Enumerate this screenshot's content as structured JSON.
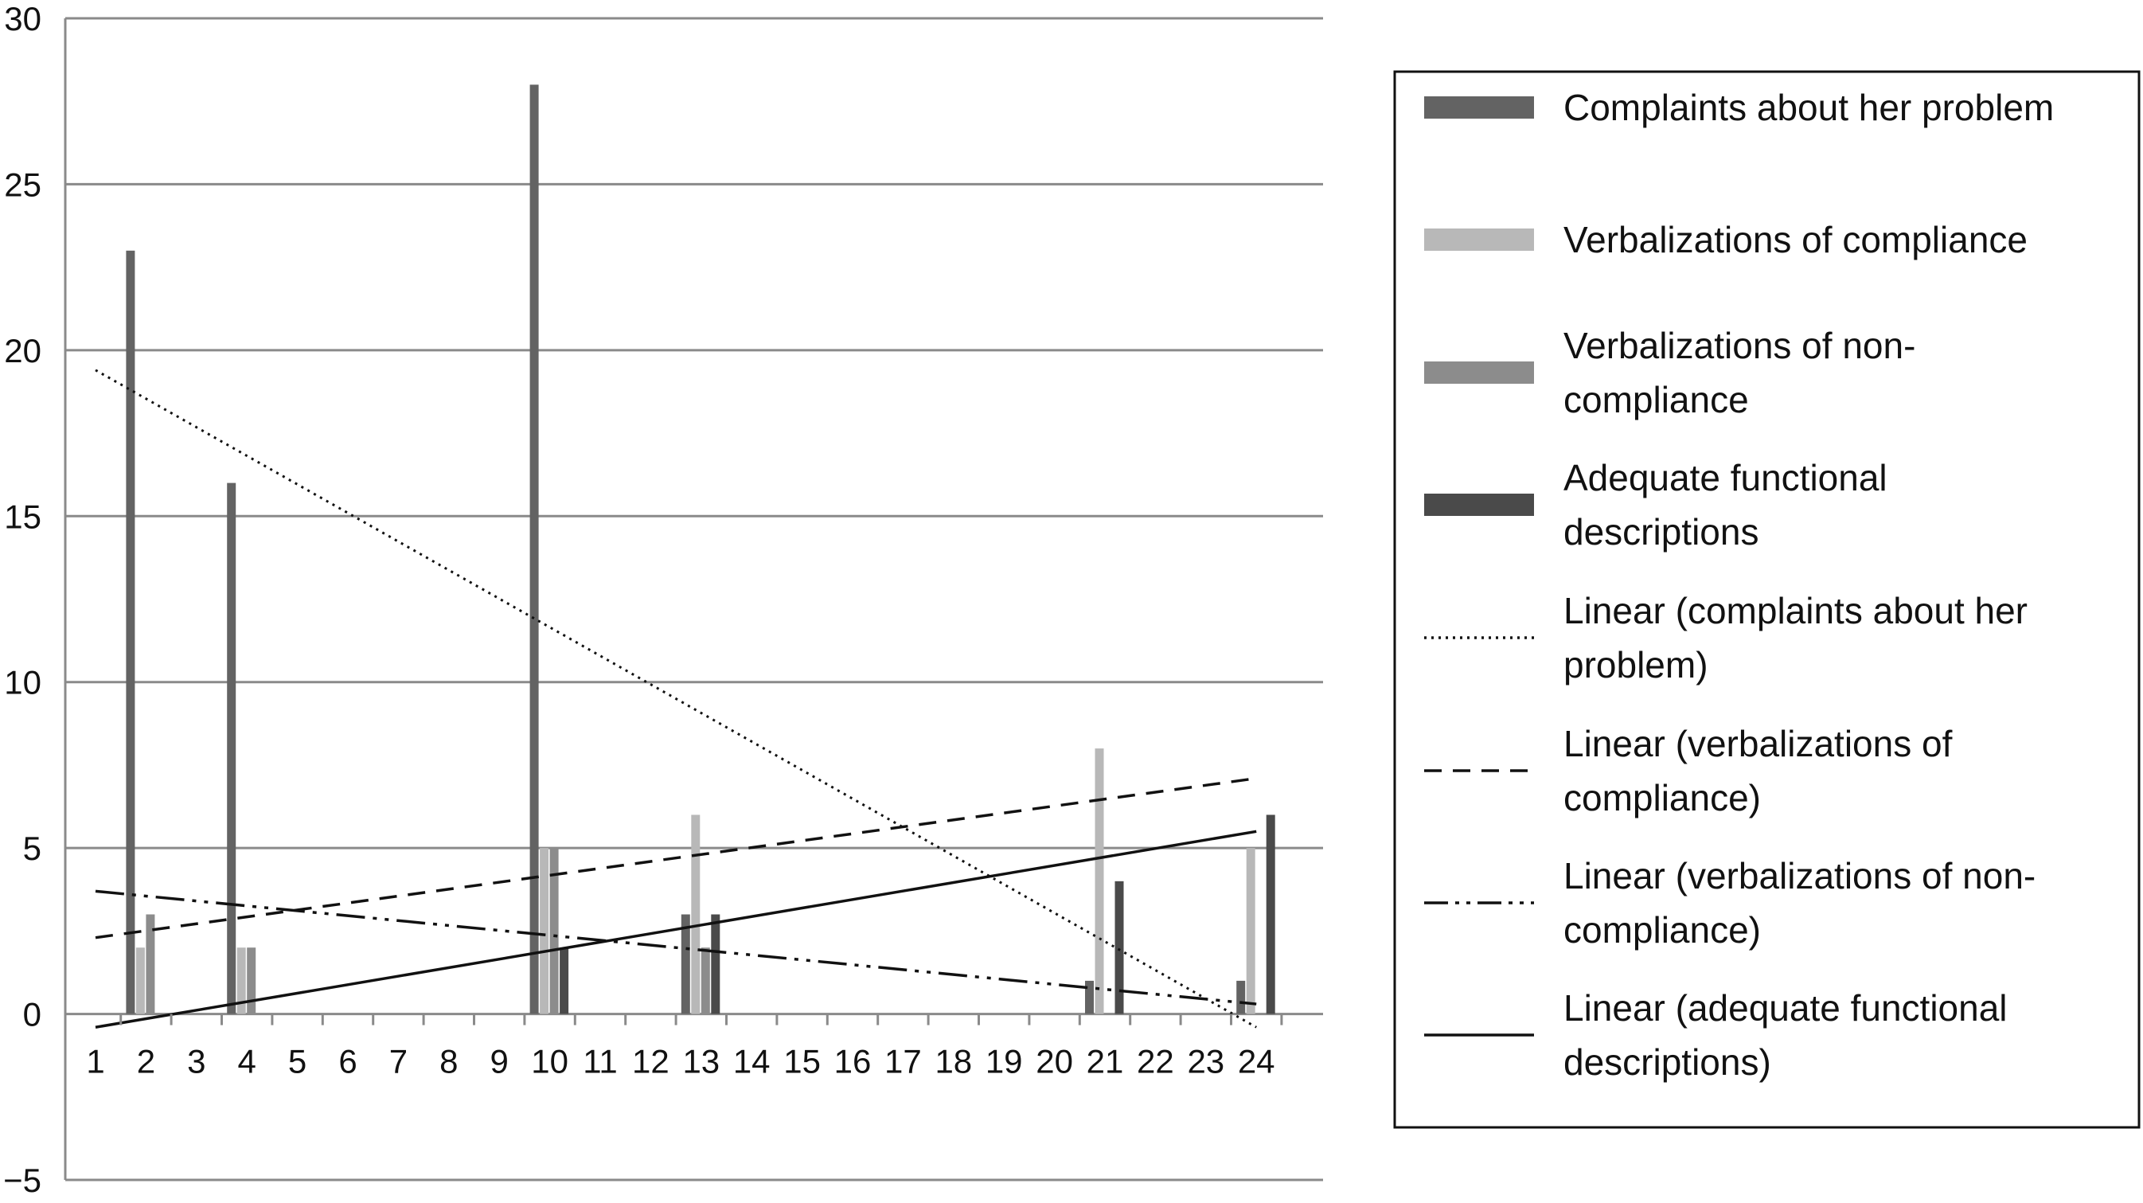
{
  "chart_data": {
    "type": "bar",
    "title": "",
    "xlabel": "",
    "ylabel": "",
    "ylim": [
      -5,
      30
    ],
    "yticks": [
      30,
      25,
      20,
      15,
      10,
      5,
      0,
      -5
    ],
    "ytick_labels": [
      "30",
      "25",
      "20",
      "15",
      "10",
      "5",
      "0",
      "−5"
    ],
    "x_tick_labels": [
      "1",
      "2",
      "3",
      "4",
      "5",
      "6",
      "7",
      "8",
      "9",
      "10",
      "11",
      "12",
      "13",
      "14",
      "15",
      "16",
      "17",
      "18",
      "19",
      "20",
      "21",
      "22",
      "23",
      "24"
    ],
    "grid": true,
    "legend_position": "right",
    "series": [
      {
        "name": "Complaints about her problem",
        "kind": "bar",
        "color": "#636363",
        "points": [
          {
            "x": 2,
            "y": 23
          },
          {
            "x": 4,
            "y": 16
          },
          {
            "x": 10,
            "y": 28
          },
          {
            "x": 13,
            "y": 3
          },
          {
            "x": 21,
            "y": 1
          },
          {
            "x": 24,
            "y": 1
          }
        ]
      },
      {
        "name": "Verbalizations of compliance",
        "kind": "bar",
        "color": "#b8b8b8",
        "points": [
          {
            "x": 2,
            "y": 2
          },
          {
            "x": 4,
            "y": 2
          },
          {
            "x": 10,
            "y": 5
          },
          {
            "x": 13,
            "y": 6
          },
          {
            "x": 21,
            "y": 8
          },
          {
            "x": 24,
            "y": 5
          }
        ]
      },
      {
        "name": "Verbalizations of non-compliance",
        "kind": "bar",
        "color": "#8c8c8c",
        "points": [
          {
            "x": 2,
            "y": 3
          },
          {
            "x": 4,
            "y": 2
          },
          {
            "x": 10,
            "y": 5
          },
          {
            "x": 13,
            "y": 2
          },
          {
            "x": 21,
            "y": 0
          },
          {
            "x": 24,
            "y": 0
          }
        ]
      },
      {
        "name": "Adequate functional descriptions",
        "kind": "bar",
        "color": "#4a4a4a",
        "points": [
          {
            "x": 2,
            "y": 0
          },
          {
            "x": 4,
            "y": 0
          },
          {
            "x": 10,
            "y": 2
          },
          {
            "x": 13,
            "y": 3
          },
          {
            "x": 21,
            "y": 4
          },
          {
            "x": 24,
            "y": 6
          }
        ]
      },
      {
        "name": "Linear (complaints about her problem)",
        "kind": "trend",
        "dash": "dotted",
        "color": "#111111",
        "points": [
          {
            "x": 1,
            "y": 19.4
          },
          {
            "x": 24,
            "y": -0.4
          }
        ]
      },
      {
        "name": "Linear (verbalizations of compliance)",
        "kind": "trend",
        "dash": "dashed",
        "color": "#111111",
        "points": [
          {
            "x": 1,
            "y": 2.3
          },
          {
            "x": 24,
            "y": 7.1
          }
        ]
      },
      {
        "name": "Linear (verbalizations of non-compliance)",
        "kind": "trend",
        "dash": "dashdotdot",
        "color": "#111111",
        "points": [
          {
            "x": 1,
            "y": 3.7
          },
          {
            "x": 24,
            "y": 0.3
          }
        ]
      },
      {
        "name": "Linear (adequate functional descriptions)",
        "kind": "trend",
        "dash": "solid",
        "color": "#111111",
        "points": [
          {
            "x": 1,
            "y": -0.4
          },
          {
            "x": 24,
            "y": 5.5
          }
        ]
      }
    ],
    "legend": [
      {
        "swatch": "bar",
        "color": "#636363",
        "lines": [
          "Complaints about her problem"
        ]
      },
      {
        "swatch": "bar",
        "color": "#b8b8b8",
        "lines": [
          "Verbalizations of compliance"
        ]
      },
      {
        "swatch": "bar",
        "color": "#8c8c8c",
        "lines": [
          "Verbalizations of non-",
          "compliance"
        ]
      },
      {
        "swatch": "bar",
        "color": "#4a4a4a",
        "lines": [
          "Adequate functional",
          "descriptions"
        ]
      },
      {
        "swatch": "line",
        "dash": "dotted",
        "lines": [
          "Linear (complaints about her",
          "problem)"
        ]
      },
      {
        "swatch": "line",
        "dash": "dashed",
        "lines": [
          "Linear (verbalizations of",
          "compliance)"
        ]
      },
      {
        "swatch": "line",
        "dash": "dashdotdot",
        "lines": [
          "Linear (verbalizations of non-",
          "compliance)"
        ]
      },
      {
        "swatch": "line",
        "dash": "solid",
        "lines": [
          "Linear (adequate functional",
          "descriptions)"
        ]
      }
    ]
  }
}
